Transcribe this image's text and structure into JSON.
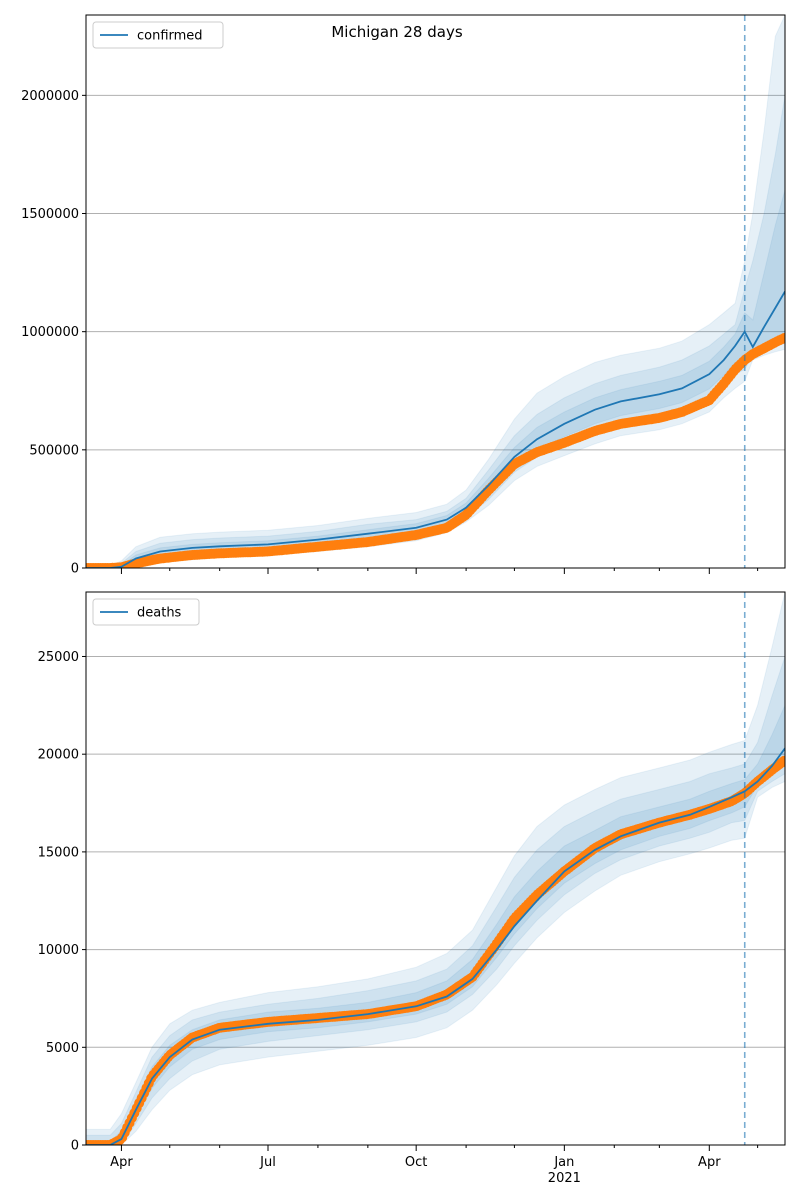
{
  "figure": {
    "title": "Michigan 28 days"
  },
  "colors": {
    "model": "#1f77b4",
    "observed": "#ff7f0e",
    "band": "#1f77b4",
    "grid": "#b0b0b0",
    "forecast_line": "#1f77b4"
  },
  "chart_data": [
    {
      "type": "line",
      "name": "confirmed-panel",
      "legend": [
        "confirmed"
      ],
      "legend_position": "top-left",
      "ylim": [
        0,
        2340000
      ],
      "yticks": [
        0,
        500000,
        1000000,
        1500000,
        2000000
      ],
      "ytick_labels": [
        "0",
        "500000",
        "1000000",
        "1500000",
        "2000000"
      ],
      "grid": "horizontal",
      "forecast_start": "2021-04-23",
      "model": {
        "dates": [
          "2020-03-10",
          "2020-03-25",
          "2020-04-01",
          "2020-04-10",
          "2020-04-25",
          "2020-05-15",
          "2020-06-01",
          "2020-07-01",
          "2020-08-01",
          "2020-09-01",
          "2020-10-01",
          "2020-10-20",
          "2020-11-01",
          "2020-11-15",
          "2020-12-01",
          "2020-12-15",
          "2021-01-01",
          "2021-01-20",
          "2021-02-05",
          "2021-03-01",
          "2021-03-15",
          "2021-04-01",
          "2021-04-10",
          "2021-04-17",
          "2021-04-23",
          "2021-04-28",
          "2021-05-05",
          "2021-05-12",
          "2021-05-18"
        ],
        "values": [
          0,
          0,
          5000,
          40000,
          70000,
          85000,
          92000,
          100000,
          120000,
          145000,
          170000,
          205000,
          255000,
          350000,
          470000,
          545000,
          610000,
          670000,
          705000,
          735000,
          760000,
          820000,
          880000,
          940000,
          1000000,
          935000,
          1020000,
          1100000,
          1170000
        ]
      },
      "observed": {
        "dates": [
          "2020-03-10",
          "2020-03-25",
          "2020-04-01",
          "2020-04-10",
          "2020-04-25",
          "2020-05-15",
          "2020-06-01",
          "2020-07-01",
          "2020-08-01",
          "2020-09-01",
          "2020-10-01",
          "2020-10-20",
          "2020-11-01",
          "2020-11-15",
          "2020-12-01",
          "2020-12-15",
          "2021-01-01",
          "2021-01-20",
          "2021-02-05",
          "2021-03-01",
          "2021-03-15",
          "2021-04-01",
          "2021-04-10",
          "2021-04-17",
          "2021-04-23",
          "2021-04-28",
          "2021-05-05",
          "2021-05-12",
          "2021-05-18"
        ],
        "values": [
          0,
          0,
          3000,
          20000,
          40000,
          55000,
          62000,
          70000,
          90000,
          110000,
          140000,
          170000,
          225000,
          330000,
          440000,
          490000,
          530000,
          580000,
          610000,
          635000,
          660000,
          710000,
          780000,
          840000,
          880000,
          905000,
          930000,
          955000,
          975000
        ]
      },
      "bands": [
        {
          "upper": [
            10000,
            10000,
            30000,
            90000,
            130000,
            145000,
            152000,
            160000,
            180000,
            210000,
            235000,
            270000,
            330000,
            460000,
            630000,
            740000,
            810000,
            870000,
            900000,
            930000,
            960000,
            1030000,
            1080000,
            1120000,
            1300000,
            1500000,
            1850000,
            2250000,
            2340000
          ],
          "lower": [
            0,
            0,
            0,
            10000,
            25000,
            35000,
            45000,
            55000,
            70000,
            90000,
            115000,
            150000,
            195000,
            265000,
            370000,
            430000,
            475000,
            525000,
            560000,
            585000,
            610000,
            660000,
            720000,
            760000,
            790000,
            880000,
            900000,
            915000,
            925000
          ]
        },
        {
          "upper": [
            5000,
            5000,
            20000,
            70000,
            105000,
            120000,
            127000,
            135000,
            155000,
            185000,
            205000,
            240000,
            295000,
            415000,
            560000,
            650000,
            720000,
            780000,
            815000,
            850000,
            880000,
            940000,
            990000,
            1030000,
            1180000,
            1300000,
            1500000,
            1750000,
            2000000
          ],
          "lower": [
            0,
            0,
            0,
            20000,
            40000,
            52000,
            60000,
            68000,
            85000,
            105000,
            133000,
            170000,
            215000,
            290000,
            405000,
            470000,
            520000,
            570000,
            605000,
            630000,
            655000,
            710000,
            770000,
            820000,
            840000,
            900000,
            925000,
            940000,
            950000
          ]
        },
        {
          "upper": [
            2000,
            2000,
            12000,
            55000,
            85000,
            100000,
            107000,
            115000,
            135000,
            162000,
            188000,
            222000,
            275000,
            380000,
            510000,
            595000,
            660000,
            720000,
            755000,
            790000,
            815000,
            875000,
            935000,
            990000,
            1080000,
            1050000,
            1250000,
            1450000,
            1600000
          ],
          "lower": [
            0,
            0,
            0,
            28000,
            52000,
            65000,
            73000,
            82000,
            100000,
            122000,
            150000,
            188000,
            235000,
            318000,
            430000,
            498000,
            555000,
            610000,
            645000,
            675000,
            700000,
            758000,
            815000,
            870000,
            870000,
            915000,
            945000,
            965000,
            985000
          ]
        }
      ]
    },
    {
      "type": "line",
      "name": "deaths-panel",
      "legend": [
        "deaths"
      ],
      "legend_position": "top-left",
      "ylim": [
        0,
        28300
      ],
      "yticks": [
        0,
        5000,
        10000,
        15000,
        20000,
        25000
      ],
      "ytick_labels": [
        "0",
        "5000",
        "10000",
        "15000",
        "20000",
        "25000"
      ],
      "grid": "horizontal",
      "forecast_start": "2021-04-23",
      "xticks": [
        "2020-04-01",
        "2020-07-01",
        "2020-10-01",
        "2021-01-01",
        "2021-04-01"
      ],
      "xtick_labels": [
        "Apr",
        "Jul",
        "Oct",
        "Jan",
        "Apr"
      ],
      "xtick_sublabel": {
        "index": 3,
        "text": "2021"
      },
      "xlim": [
        "2020-03-10",
        "2021-05-18"
      ],
      "model": {
        "dates": [
          "2020-03-10",
          "2020-03-25",
          "2020-04-01",
          "2020-04-10",
          "2020-04-20",
          "2020-05-01",
          "2020-05-15",
          "2020-06-01",
          "2020-07-01",
          "2020-08-01",
          "2020-09-01",
          "2020-10-01",
          "2020-10-20",
          "2020-11-05",
          "2020-11-20",
          "2020-12-01",
          "2020-12-15",
          "2021-01-01",
          "2021-01-20",
          "2021-02-05",
          "2021-03-01",
          "2021-03-20",
          "2021-04-01",
          "2021-04-15",
          "2021-04-23",
          "2021-05-01",
          "2021-05-10",
          "2021-05-18"
        ],
        "values": [
          0,
          0,
          300,
          1800,
          3400,
          4500,
          5400,
          5900,
          6200,
          6400,
          6700,
          7100,
          7600,
          8500,
          10000,
          11200,
          12500,
          14000,
          15100,
          15800,
          16500,
          16900,
          17300,
          17800,
          18100,
          18600,
          19400,
          20300
        ]
      },
      "observed": {
        "dates": [
          "2020-03-10",
          "2020-03-25",
          "2020-04-01",
          "2020-04-10",
          "2020-04-20",
          "2020-05-01",
          "2020-05-15",
          "2020-06-01",
          "2020-07-01",
          "2020-08-01",
          "2020-09-01",
          "2020-10-01",
          "2020-10-20",
          "2020-11-05",
          "2020-11-20",
          "2020-12-01",
          "2020-12-15",
          "2021-01-01",
          "2021-01-20",
          "2021-02-05",
          "2021-03-01",
          "2021-03-20",
          "2021-04-01",
          "2021-04-15",
          "2021-04-23",
          "2021-05-01",
          "2021-05-10",
          "2021-05-18"
        ],
        "values": [
          0,
          0,
          300,
          1800,
          3500,
          4600,
          5500,
          6000,
          6300,
          6500,
          6700,
          7100,
          7700,
          8600,
          10300,
          11600,
          12800,
          14000,
          15200,
          15900,
          16500,
          16900,
          17200,
          17600,
          18000,
          18600,
          19200,
          19700
        ]
      },
      "bands": [
        {
          "upper": [
            800,
            800,
            1600,
            3200,
            5000,
            6200,
            6900,
            7300,
            7800,
            8100,
            8500,
            9100,
            9800,
            11000,
            13200,
            14800,
            16300,
            17400,
            18200,
            18800,
            19300,
            19700,
            20100,
            20500,
            20700,
            22500,
            25500,
            28300
          ],
          "lower": [
            0,
            0,
            0,
            700,
            1800,
            2800,
            3600,
            4100,
            4500,
            4800,
            5100,
            5500,
            6000,
            6900,
            8200,
            9300,
            10600,
            11900,
            13000,
            13800,
            14500,
            14900,
            15200,
            15600,
            15700,
            17800,
            18300,
            18600
          ]
        },
        {
          "upper": [
            500,
            500,
            1100,
            2700,
            4500,
            5600,
            6400,
            6800,
            7200,
            7500,
            7900,
            8400,
            9000,
            10200,
            12200,
            13700,
            15100,
            16300,
            17100,
            17700,
            18200,
            18600,
            19000,
            19300,
            19500,
            20600,
            23000,
            25000
          ],
          "lower": [
            0,
            0,
            0,
            1100,
            2400,
            3400,
            4300,
            4900,
            5300,
            5600,
            5900,
            6300,
            6800,
            7700,
            9000,
            10200,
            11500,
            12800,
            13900,
            14600,
            15300,
            15700,
            16000,
            16500,
            16600,
            18100,
            18600,
            19000
          ]
        },
        {
          "upper": [
            200,
            200,
            700,
            2300,
            4000,
            5100,
            5900,
            6400,
            6800,
            7000,
            7300,
            7800,
            8400,
            9500,
            11300,
            12700,
            14000,
            15300,
            16100,
            16800,
            17300,
            17700,
            18100,
            18500,
            18700,
            19500,
            21000,
            22500
          ],
          "lower": [
            0,
            0,
            0,
            1400,
            2900,
            4000,
            4900,
            5400,
            5800,
            6000,
            6300,
            6700,
            7200,
            8100,
            9600,
            10800,
            12100,
            13400,
            14400,
            15100,
            15800,
            16200,
            16600,
            17000,
            17300,
            18400,
            19000,
            19500
          ]
        }
      ]
    }
  ]
}
